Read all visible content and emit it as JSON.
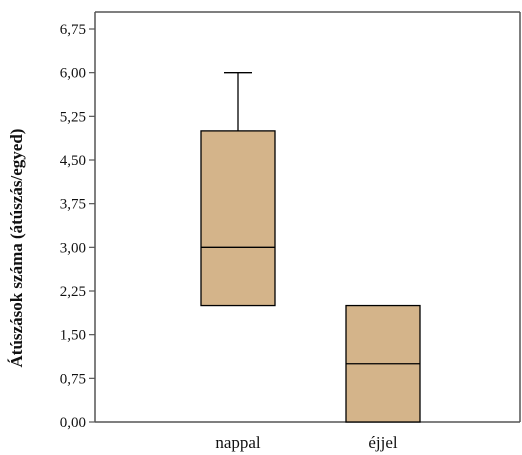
{
  "chart_data": {
    "type": "boxplot",
    "title": "",
    "xlabel": "",
    "ylabel": "Átúszások száma (átúszás/egyed)",
    "ylim": [
      0,
      6.75
    ],
    "yticks": [
      0,
      0.75,
      1.5,
      2.25,
      3,
      3.75,
      4.5,
      5.25,
      6,
      6.75
    ],
    "ytick_labels": [
      "0,00",
      "0,75",
      "1,50",
      "2,25",
      "3,00",
      "3,75",
      "4,50",
      "5,25",
      "6,00",
      "6,75"
    ],
    "categories": [
      "nappal",
      "éjjel"
    ],
    "boxes": [
      {
        "category": "nappal",
        "min": 2,
        "q1": 2,
        "median": 3,
        "q3": 5,
        "max": 6
      },
      {
        "category": "éjjel",
        "min": 0,
        "q1": 0,
        "median": 1,
        "q3": 2,
        "max": 2
      }
    ],
    "grid": false,
    "legend": "none",
    "colors": {
      "box_fill": "#d4b48a",
      "stroke": "#000000",
      "axis": "#555555"
    }
  }
}
